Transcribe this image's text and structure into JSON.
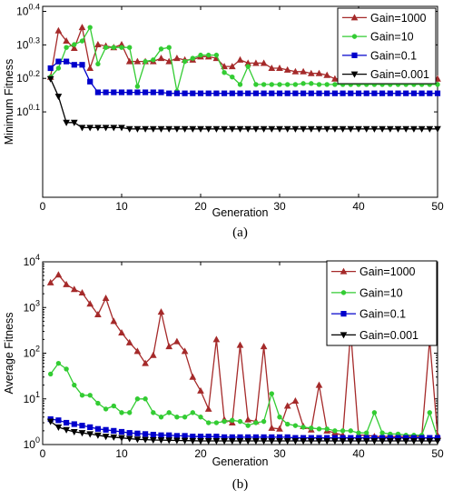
{
  "chart_data": [
    {
      "type": "line",
      "panel_label": "(a)",
      "xlabel": "Generation",
      "ylabel": "Minimum Fitness",
      "xlim": [
        0,
        50
      ],
      "y_scale": "log",
      "ylim": [
        0.7,
        2.6
      ],
      "x_ticks": [
        "0",
        "10",
        "20",
        "30",
        "40",
        "50"
      ],
      "y_ticks": [
        {
          "base": "10",
          "exp": "0.1",
          "value": 1.2589
        },
        {
          "base": "10",
          "exp": "0.2",
          "value": 1.5849
        },
        {
          "base": "10",
          "exp": "0.3",
          "value": 1.9953
        },
        {
          "base": "10",
          "exp": "0.4",
          "value": 2.5119
        }
      ],
      "grid": false,
      "legend_position": "top-right",
      "series": [
        {
          "name": "Gain=1000",
          "color": "#a52a2a",
          "marker": "triangle-up",
          "x": [
            1,
            2,
            3,
            4,
            5,
            6,
            7,
            8,
            9,
            10,
            11,
            12,
            13,
            14,
            15,
            16,
            17,
            18,
            19,
            20,
            21,
            22,
            23,
            24,
            25,
            26,
            27,
            28,
            29,
            30,
            31,
            32,
            33,
            34,
            35,
            36,
            37,
            38,
            39,
            40,
            41,
            42,
            43,
            44,
            45,
            46,
            47,
            48,
            49,
            50
          ],
          "y": [
            1.6,
            2.2,
            2.05,
            1.95,
            2.25,
            1.7,
            2.0,
            1.98,
            1.96,
            2.0,
            1.78,
            1.78,
            1.78,
            1.78,
            1.82,
            1.78,
            1.82,
            1.8,
            1.8,
            1.84,
            1.84,
            1.82,
            1.72,
            1.72,
            1.8,
            1.76,
            1.76,
            1.76,
            1.7,
            1.7,
            1.68,
            1.66,
            1.66,
            1.64,
            1.64,
            1.62,
            1.58,
            1.58,
            1.58,
            1.58,
            1.58,
            1.58,
            1.58,
            1.58,
            1.58,
            1.58,
            1.58,
            1.58,
            1.58,
            1.58
          ]
        },
        {
          "name": "Gain=10",
          "color": "#33cc33",
          "marker": "circle",
          "x": [
            1,
            2,
            3,
            4,
            5,
            6,
            7,
            8,
            9,
            10,
            11,
            12,
            13,
            14,
            15,
            16,
            17,
            18,
            19,
            20,
            21,
            22,
            23,
            24,
            25,
            26,
            27,
            28,
            29,
            30,
            31,
            32,
            33,
            34,
            35,
            36,
            37,
            38,
            39,
            40,
            41,
            42,
            43,
            44,
            45,
            46,
            47,
            48,
            49,
            50
          ],
          "y": [
            1.6,
            1.7,
            1.96,
            2.0,
            2.05,
            2.25,
            1.75,
            1.96,
            1.96,
            1.96,
            1.96,
            1.5,
            1.78,
            1.8,
            1.94,
            1.96,
            1.45,
            1.78,
            1.82,
            1.86,
            1.86,
            1.86,
            1.65,
            1.6,
            1.52,
            1.72,
            1.52,
            1.52,
            1.52,
            1.52,
            1.52,
            1.52,
            1.53,
            1.53,
            1.52,
            1.52,
            1.52,
            1.52,
            1.52,
            1.52,
            1.52,
            1.52,
            1.52,
            1.52,
            1.52,
            1.52,
            1.52,
            1.52,
            1.52,
            1.52
          ]
        },
        {
          "name": "Gain=0.1",
          "color": "#0000cc",
          "marker": "square",
          "x": [
            1,
            2,
            3,
            4,
            5,
            6,
            7,
            8,
            9,
            10,
            11,
            12,
            13,
            14,
            15,
            16,
            17,
            18,
            19,
            20,
            21,
            22,
            23,
            24,
            25,
            26,
            27,
            28,
            29,
            30,
            31,
            32,
            33,
            34,
            35,
            36,
            37,
            38,
            39,
            40,
            41,
            42,
            43,
            44,
            45,
            46,
            47,
            48,
            49,
            50
          ],
          "y": [
            1.7,
            1.78,
            1.78,
            1.74,
            1.74,
            1.55,
            1.44,
            1.44,
            1.44,
            1.44,
            1.44,
            1.44,
            1.44,
            1.44,
            1.44,
            1.43,
            1.43,
            1.43,
            1.43,
            1.43,
            1.43,
            1.43,
            1.43,
            1.43,
            1.43,
            1.43,
            1.43,
            1.43,
            1.43,
            1.43,
            1.43,
            1.43,
            1.43,
            1.43,
            1.43,
            1.43,
            1.43,
            1.43,
            1.43,
            1.43,
            1.43,
            1.43,
            1.43,
            1.43,
            1.43,
            1.43,
            1.43,
            1.43,
            1.43,
            1.43
          ]
        },
        {
          "name": "Gain=0.001",
          "color": "#000000",
          "marker": "triangle-down",
          "x": [
            1,
            2,
            3,
            4,
            5,
            6,
            7,
            8,
            9,
            10,
            11,
            12,
            13,
            14,
            15,
            16,
            17,
            18,
            19,
            20,
            21,
            22,
            23,
            24,
            25,
            26,
            27,
            28,
            29,
            30,
            31,
            32,
            33,
            34,
            35,
            36,
            37,
            38,
            39,
            40,
            41,
            42,
            43,
            44,
            45,
            46,
            47,
            48,
            49,
            50
          ],
          "y": [
            1.58,
            1.4,
            1.17,
            1.17,
            1.13,
            1.13,
            1.13,
            1.13,
            1.13,
            1.13,
            1.12,
            1.12,
            1.12,
            1.12,
            1.12,
            1.12,
            1.12,
            1.12,
            1.12,
            1.12,
            1.12,
            1.12,
            1.12,
            1.12,
            1.12,
            1.12,
            1.12,
            1.12,
            1.12,
            1.12,
            1.12,
            1.12,
            1.12,
            1.12,
            1.12,
            1.12,
            1.12,
            1.12,
            1.12,
            1.12,
            1.12,
            1.12,
            1.12,
            1.12,
            1.12,
            1.12,
            1.12,
            1.12,
            1.12,
            1.12
          ]
        }
      ]
    },
    {
      "type": "line",
      "panel_label": "(b)",
      "xlabel": "Generation",
      "ylabel": "Average Fitness",
      "xlim": [
        0,
        50
      ],
      "y_scale": "log",
      "ylim": [
        1,
        10000
      ],
      "x_ticks": [
        "0",
        "10",
        "20",
        "30",
        "40",
        "50"
      ],
      "y_ticks": [
        {
          "base": "10",
          "exp": "0",
          "value": 1
        },
        {
          "base": "10",
          "exp": "1",
          "value": 10
        },
        {
          "base": "10",
          "exp": "2",
          "value": 100
        },
        {
          "base": "10",
          "exp": "3",
          "value": 1000
        },
        {
          "base": "10",
          "exp": "4",
          "value": 10000
        }
      ],
      "grid": false,
      "legend_position": "top-right",
      "series": [
        {
          "name": "Gain=1000",
          "color": "#a52a2a",
          "marker": "triangle-up",
          "x": [
            1,
            2,
            3,
            4,
            5,
            6,
            7,
            8,
            9,
            10,
            11,
            12,
            13,
            14,
            15,
            16,
            17,
            18,
            19,
            20,
            21,
            22,
            23,
            24,
            25,
            26,
            27,
            28,
            29,
            30,
            31,
            32,
            33,
            34,
            35,
            36,
            37,
            38,
            39,
            40,
            41,
            42,
            43,
            44,
            45,
            46,
            47,
            48,
            49,
            50
          ],
          "y": [
            3500,
            5200,
            3200,
            2500,
            2100,
            1200,
            700,
            1600,
            500,
            280,
            170,
            110,
            60,
            90,
            800,
            140,
            180,
            110,
            30,
            15,
            6,
            200,
            3.5,
            3,
            150,
            3.5,
            3.2,
            140,
            2.3,
            2.2,
            7,
            9,
            2.5,
            2.1,
            20,
            2,
            1.8,
            1.6,
            300,
            1.6,
            1.6,
            1.5,
            1.5,
            1.5,
            1.5,
            1.5,
            1.5,
            1.5,
            200,
            1.6
          ]
        },
        {
          "name": "Gain=10",
          "color": "#33cc33",
          "marker": "circle",
          "x": [
            1,
            2,
            3,
            4,
            5,
            6,
            7,
            8,
            9,
            10,
            11,
            12,
            13,
            14,
            15,
            16,
            17,
            18,
            19,
            20,
            21,
            22,
            23,
            24,
            25,
            26,
            27,
            28,
            29,
            30,
            31,
            32,
            33,
            34,
            35,
            36,
            37,
            38,
            39,
            40,
            41,
            42,
            43,
            44,
            45,
            46,
            47,
            48,
            49,
            50
          ],
          "y": [
            35,
            60,
            45,
            20,
            12,
            12,
            8,
            6,
            7,
            5,
            5,
            10,
            10,
            5,
            4,
            5,
            4,
            4,
            5,
            4,
            3,
            3,
            3.2,
            3.4,
            3.2,
            2.6,
            3,
            3.2,
            13,
            4,
            2.8,
            2.6,
            2.4,
            2.3,
            2.2,
            2.2,
            2,
            2,
            2,
            1.8,
            1.8,
            5,
            1.8,
            1.7,
            1.7,
            1.6,
            1.6,
            1.6,
            5,
            1.4
          ]
        },
        {
          "name": "Gain=0.1",
          "color": "#0000cc",
          "marker": "square",
          "x": [
            1,
            2,
            3,
            4,
            5,
            6,
            7,
            8,
            9,
            10,
            11,
            12,
            13,
            14,
            15,
            16,
            17,
            18,
            19,
            20,
            21,
            22,
            23,
            24,
            25,
            26,
            27,
            28,
            29,
            30,
            31,
            32,
            33,
            34,
            35,
            36,
            37,
            38,
            39,
            40,
            41,
            42,
            43,
            44,
            45,
            46,
            47,
            48,
            49,
            50
          ],
          "y": [
            3.6,
            3.4,
            3,
            2.8,
            2.6,
            2.4,
            2.2,
            2.1,
            2,
            1.9,
            1.8,
            1.75,
            1.7,
            1.65,
            1.6,
            1.6,
            1.55,
            1.55,
            1.5,
            1.5,
            1.5,
            1.5,
            1.45,
            1.45,
            1.45,
            1.45,
            1.45,
            1.45,
            1.45,
            1.45,
            1.45,
            1.4,
            1.4,
            1.4,
            1.4,
            1.4,
            1.4,
            1.4,
            1.4,
            1.4,
            1.4,
            1.4,
            1.4,
            1.4,
            1.4,
            1.4,
            1.4,
            1.4,
            1.4,
            1.4
          ]
        },
        {
          "name": "Gain=0.001",
          "color": "#000000",
          "marker": "triangle-down",
          "x": [
            1,
            2,
            3,
            4,
            5,
            6,
            7,
            8,
            9,
            10,
            11,
            12,
            13,
            14,
            15,
            16,
            17,
            18,
            19,
            20,
            21,
            22,
            23,
            24,
            25,
            26,
            27,
            28,
            29,
            30,
            31,
            32,
            33,
            34,
            35,
            36,
            37,
            38,
            39,
            40,
            41,
            42,
            43,
            44,
            45,
            46,
            47,
            48,
            49,
            50
          ],
          "y": [
            3.2,
            2.4,
            2.1,
            1.9,
            1.8,
            1.7,
            1.6,
            1.5,
            1.45,
            1.4,
            1.35,
            1.3,
            1.28,
            1.26,
            1.25,
            1.24,
            1.23,
            1.22,
            1.21,
            1.2,
            1.2,
            1.2,
            1.2,
            1.2,
            1.2,
            1.2,
            1.2,
            1.2,
            1.2,
            1.2,
            1.2,
            1.2,
            1.2,
            1.2,
            1.2,
            1.2,
            1.2,
            1.2,
            1.2,
            1.2,
            1.2,
            1.2,
            1.2,
            1.2,
            1.2,
            1.2,
            1.2,
            1.2,
            1.2,
            1.2
          ]
        }
      ]
    }
  ]
}
